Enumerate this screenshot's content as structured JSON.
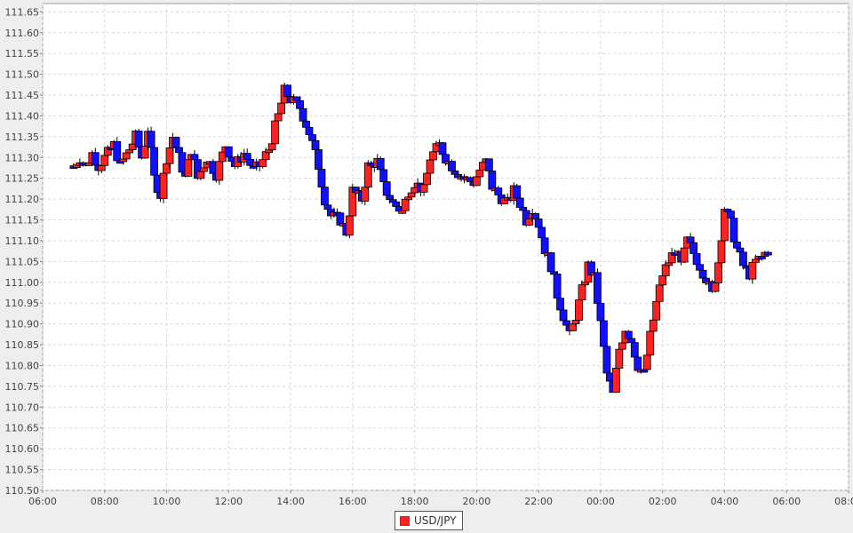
{
  "chart_data": {
    "type": "candlestick",
    "series_name": "USD/JPY",
    "colors": {
      "up": "#ff2020",
      "down": "#1010ff",
      "outline": "#000000",
      "grid": "#d8d8d8",
      "plot_bg": "#ffffff"
    },
    "ylim": [
      110.5,
      111.67
    ],
    "y_ticks": [
      "110.50",
      "110.55",
      "110.60",
      "110.65",
      "110.70",
      "110.75",
      "110.80",
      "110.85",
      "110.90",
      "110.95",
      "111.00",
      "111.05",
      "111.10",
      "111.15",
      "111.20",
      "111.25",
      "111.30",
      "111.35",
      "111.40",
      "111.45",
      "111.50",
      "111.55",
      "111.60",
      "111.65"
    ],
    "x_ticks": [
      "06:00",
      "08:00",
      "10:00",
      "12:00",
      "14:00",
      "16:00",
      "18:00",
      "20:00",
      "22:00",
      "00:00",
      "02:00",
      "04:00",
      "06:00",
      "08:00"
    ],
    "x_range_hours": [
      0,
      26
    ],
    "grid": true,
    "legend_position": "bottom-center",
    "price_path": [
      [
        1.0,
        111.28
      ],
      [
        1.2,
        111.3
      ],
      [
        1.4,
        111.28
      ],
      [
        1.6,
        111.31
      ],
      [
        1.8,
        111.28
      ],
      [
        2.0,
        111.3
      ],
      [
        2.3,
        111.33
      ],
      [
        2.5,
        111.28
      ],
      [
        2.8,
        111.32
      ],
      [
        3.0,
        111.35
      ],
      [
        3.2,
        111.3
      ],
      [
        3.4,
        111.37
      ],
      [
        3.6,
        111.25
      ],
      [
        3.8,
        111.21
      ],
      [
        4.0,
        111.3
      ],
      [
        4.2,
        111.35
      ],
      [
        4.4,
        111.3
      ],
      [
        4.6,
        111.25
      ],
      [
        4.8,
        111.32
      ],
      [
        5.0,
        111.25
      ],
      [
        5.3,
        111.3
      ],
      [
        5.6,
        111.26
      ],
      [
        5.9,
        111.33
      ],
      [
        6.2,
        111.28
      ],
      [
        6.5,
        111.31
      ],
      [
        6.8,
        111.27
      ],
      [
        7.0,
        111.28
      ],
      [
        7.3,
        111.32
      ],
      [
        7.6,
        111.4
      ],
      [
        7.8,
        111.46
      ],
      [
        8.0,
        111.44
      ],
      [
        8.3,
        111.42
      ],
      [
        8.6,
        111.36
      ],
      [
        8.9,
        111.28
      ],
      [
        9.1,
        111.2
      ],
      [
        9.3,
        111.16
      ],
      [
        9.6,
        111.15
      ],
      [
        9.8,
        111.12
      ],
      [
        10.0,
        111.22
      ],
      [
        10.3,
        111.2
      ],
      [
        10.5,
        111.28
      ],
      [
        10.8,
        111.29
      ],
      [
        11.0,
        111.23
      ],
      [
        11.3,
        111.19
      ],
      [
        11.6,
        111.17
      ],
      [
        11.8,
        111.22
      ],
      [
        12.0,
        111.24
      ],
      [
        12.3,
        111.22
      ],
      [
        12.5,
        111.3
      ],
      [
        12.8,
        111.33
      ],
      [
        13.0,
        111.3
      ],
      [
        13.3,
        111.27
      ],
      [
        13.6,
        111.25
      ],
      [
        13.9,
        111.24
      ],
      [
        14.1,
        111.27
      ],
      [
        14.3,
        111.29
      ],
      [
        14.5,
        111.23
      ],
      [
        14.7,
        111.21
      ],
      [
        15.0,
        111.19
      ],
      [
        15.2,
        111.22
      ],
      [
        15.4,
        111.19
      ],
      [
        15.6,
        111.15
      ],
      [
        15.8,
        111.18
      ],
      [
        16.0,
        111.14
      ],
      [
        16.2,
        111.08
      ],
      [
        16.4,
        111.04
      ],
      [
        16.6,
        110.97
      ],
      [
        16.8,
        110.92
      ],
      [
        17.0,
        110.87
      ],
      [
        17.2,
        110.92
      ],
      [
        17.4,
        110.98
      ],
      [
        17.6,
        111.04
      ],
      [
        17.8,
        111.01
      ],
      [
        18.0,
        110.9
      ],
      [
        18.2,
        110.78
      ],
      [
        18.4,
        110.73
      ],
      [
        18.6,
        110.84
      ],
      [
        18.8,
        110.89
      ],
      [
        19.0,
        110.86
      ],
      [
        19.2,
        110.8
      ],
      [
        19.4,
        110.78
      ],
      [
        19.6,
        110.87
      ],
      [
        19.8,
        110.95
      ],
      [
        20.0,
        111.02
      ],
      [
        20.2,
        111.05
      ],
      [
        20.4,
        111.08
      ],
      [
        20.6,
        111.04
      ],
      [
        20.8,
        111.1
      ],
      [
        21.0,
        111.07
      ],
      [
        21.2,
        111.04
      ],
      [
        21.4,
        111.01
      ],
      [
        21.6,
        110.97
      ],
      [
        21.8,
        111.05
      ],
      [
        22.0,
        111.18
      ],
      [
        22.2,
        111.14
      ],
      [
        22.4,
        111.08
      ],
      [
        22.6,
        111.04
      ],
      [
        22.8,
        111.02
      ],
      [
        23.0,
        111.05
      ],
      [
        23.2,
        111.06
      ],
      [
        23.4,
        111.08
      ]
    ]
  }
}
